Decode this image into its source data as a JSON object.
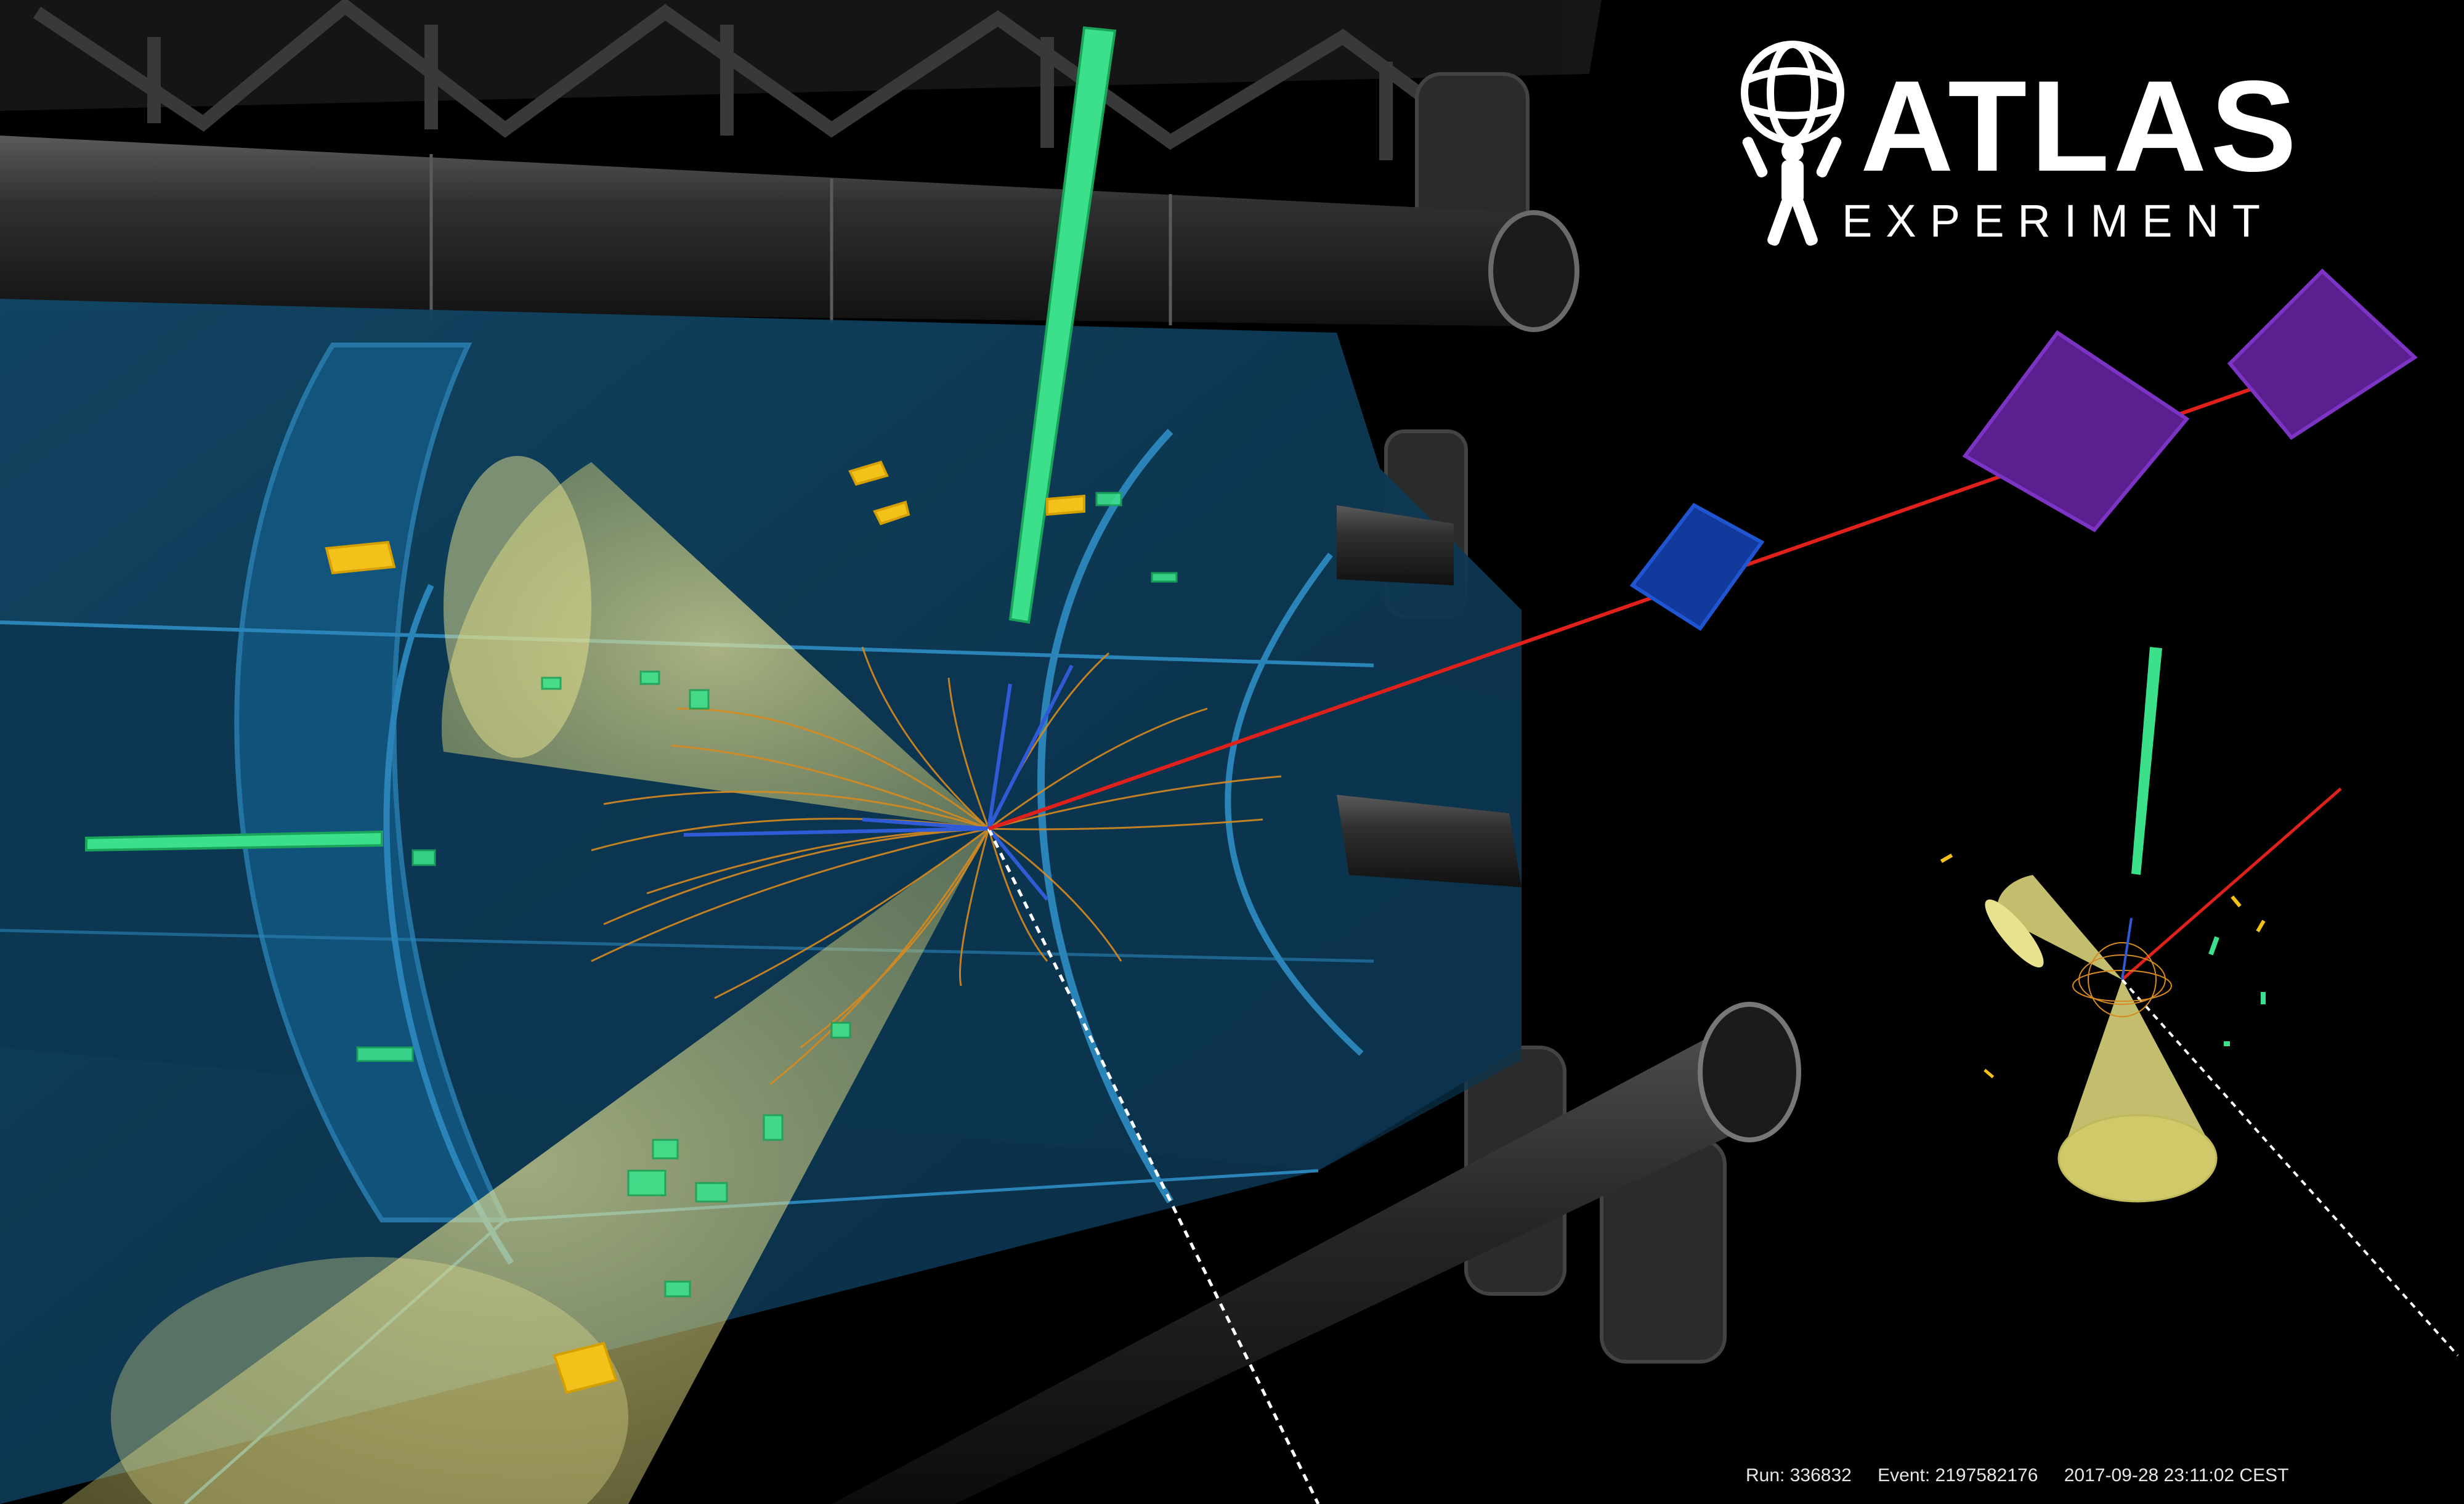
{
  "logo": {
    "title": "ATLAS",
    "subtitle": "EXPERIMENT"
  },
  "event_info": {
    "run": "Run: 336832",
    "event": "Event: 2197582176",
    "timestamp": "2017-09-28 23:11:02 CEST"
  },
  "colors": {
    "background": "#000000",
    "detector_blue": "#0d3b56",
    "detector_edge": "#2b84b8",
    "magnet_gray": "#2a2a2a",
    "jet_cone": "#d8d27a",
    "track_orange": "#d68a1f",
    "track_blue": "#2f5bd6",
    "muon_red": "#e0201a",
    "chamber_green": "#3ce08a",
    "chamber_purple": "#5b1f8f",
    "chamber_blue": "#123a9c",
    "deposit_yellow": "#f2c21a"
  }
}
